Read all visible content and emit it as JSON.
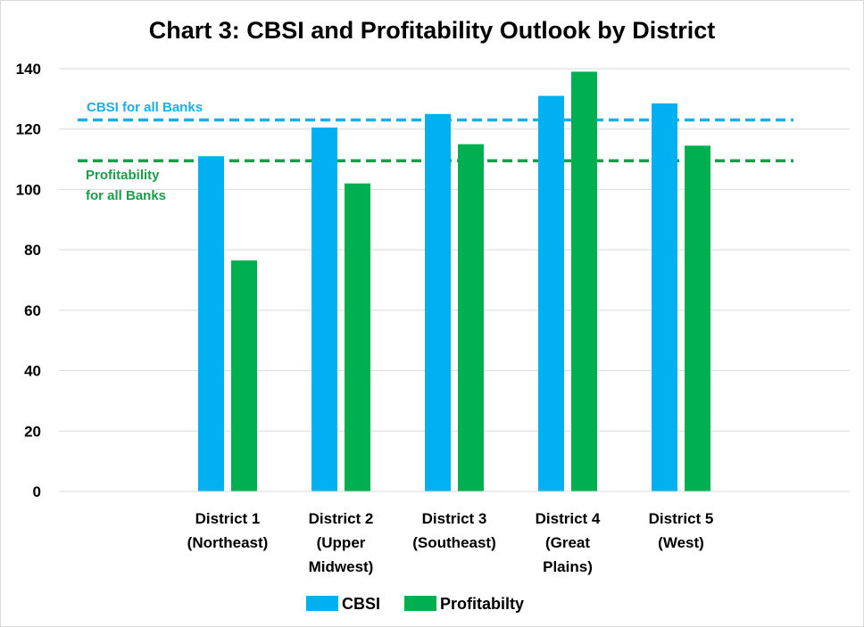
{
  "chart_data": {
    "type": "bar",
    "title": "Chart 3: CBSI and Profitability Outlook by District",
    "categories": [
      [
        "District 1",
        "(Northeast)"
      ],
      [
        "District 2",
        "(Upper",
        "Midwest)"
      ],
      [
        "District 3",
        "(Southeast)"
      ],
      [
        "District 4",
        "(Great",
        "Plains)"
      ],
      [
        "District 5",
        "(West)"
      ]
    ],
    "series": [
      {
        "name": "CBSI",
        "color": "#00b0f0",
        "values": [
          111,
          120.5,
          125,
          131,
          128.5
        ]
      },
      {
        "name": "Profitabilty",
        "color": "#00b050",
        "values": [
          76.5,
          102,
          115,
          139,
          114.5
        ]
      }
    ],
    "ylim": [
      0,
      140
    ],
    "yticks": [
      0,
      20,
      40,
      60,
      80,
      100,
      120,
      140
    ],
    "grid": true,
    "legend": "bottom",
    "reference_lines": [
      {
        "label": [
          "CBSI for all Banks"
        ],
        "value": 123,
        "color": "#1ab0e6"
      },
      {
        "label": [
          "Profitability",
          "for all Banks"
        ],
        "value": 109.5,
        "color": "#1a9e4a"
      }
    ]
  }
}
